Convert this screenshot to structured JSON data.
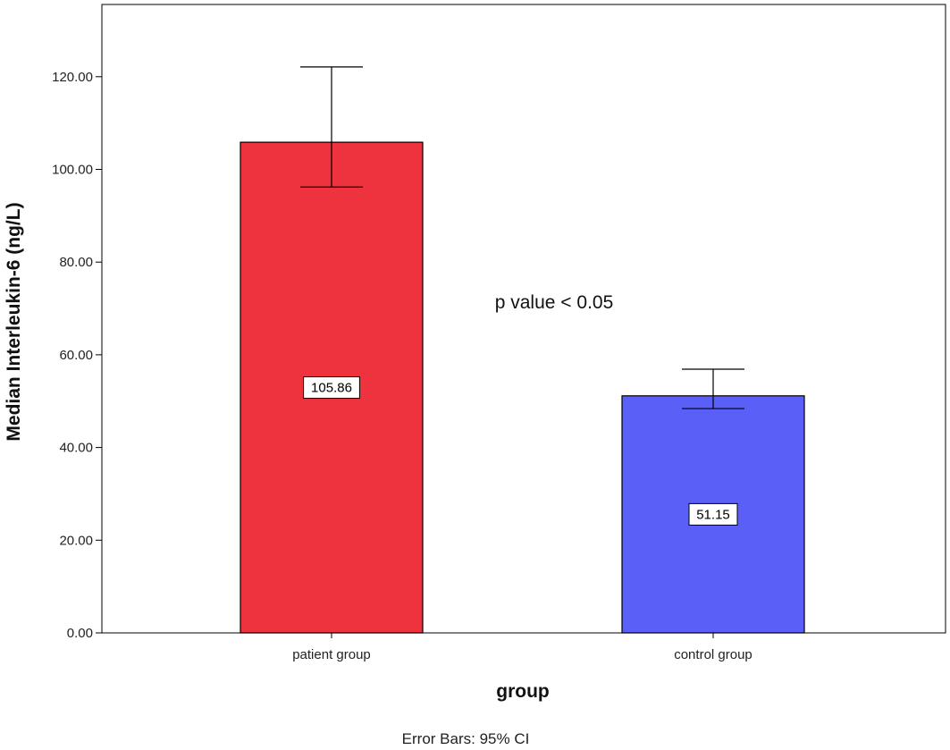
{
  "chart_data": {
    "type": "bar",
    "categories": [
      "patient group",
      "control group"
    ],
    "values": [
      105.86,
      51.15
    ],
    "error_bars": [
      {
        "low": 96.2,
        "high": 122.1
      },
      {
        "low": 48.4,
        "high": 56.9
      }
    ],
    "data_labels": [
      "105.86",
      "51.15"
    ],
    "bar_colors": [
      "#ef333e",
      "#5a5ff7"
    ],
    "xlabel": "group",
    "ylabel": "Median Interleukin-6  (ng/L)",
    "ylim": [
      0,
      130
    ],
    "yticks": [
      0,
      20,
      40,
      60,
      80,
      100,
      120
    ],
    "ytick_labels": [
      "0.00",
      "20.00",
      "40.00",
      "60.00",
      "80.00",
      "100.00",
      "120.00"
    ],
    "annotation": "p value < 0.05",
    "footer": "Error Bars: 95% CI",
    "grid": false,
    "legend": "none"
  }
}
